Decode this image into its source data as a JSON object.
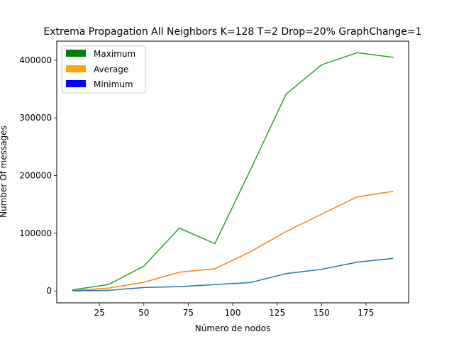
{
  "chart_data": {
    "type": "line",
    "title": "Extrema Propagation All Neighbors K=128 T=2  Drop=20% GraphChange=1",
    "xlabel": "Número de nodos",
    "ylabel": "Number Of messages",
    "xlim": [
      1,
      199
    ],
    "ylim": [
      -20600,
      433000
    ],
    "x": [
      10,
      30,
      50,
      70,
      90,
      110,
      130,
      150,
      170,
      190
    ],
    "x_ticks": [
      25,
      50,
      75,
      100,
      125,
      150,
      175
    ],
    "y_ticks": [
      0,
      100000,
      200000,
      300000,
      400000
    ],
    "grid": false,
    "legend_position": "top-left",
    "legend": [
      {
        "label": "Maximum",
        "color": "#008000"
      },
      {
        "label": "Average",
        "color": "#ffa500"
      },
      {
        "label": "Minimum",
        "color": "#0000ff"
      }
    ],
    "series": [
      {
        "color": "#2ca02c",
        "values": [
          2200,
          11000,
          43000,
          109000,
          82000,
          210000,
          341000,
          392000,
          413000,
          405000
        ]
      },
      {
        "color": "#ff7f0e",
        "values": [
          800,
          5000,
          15000,
          32500,
          38500,
          68000,
          103000,
          133000,
          163000,
          172500
        ]
      },
      {
        "color": "#1f77b4",
        "values": [
          300,
          1000,
          6000,
          7500,
          11000,
          14500,
          30000,
          37500,
          50000,
          56500
        ]
      }
    ]
  }
}
